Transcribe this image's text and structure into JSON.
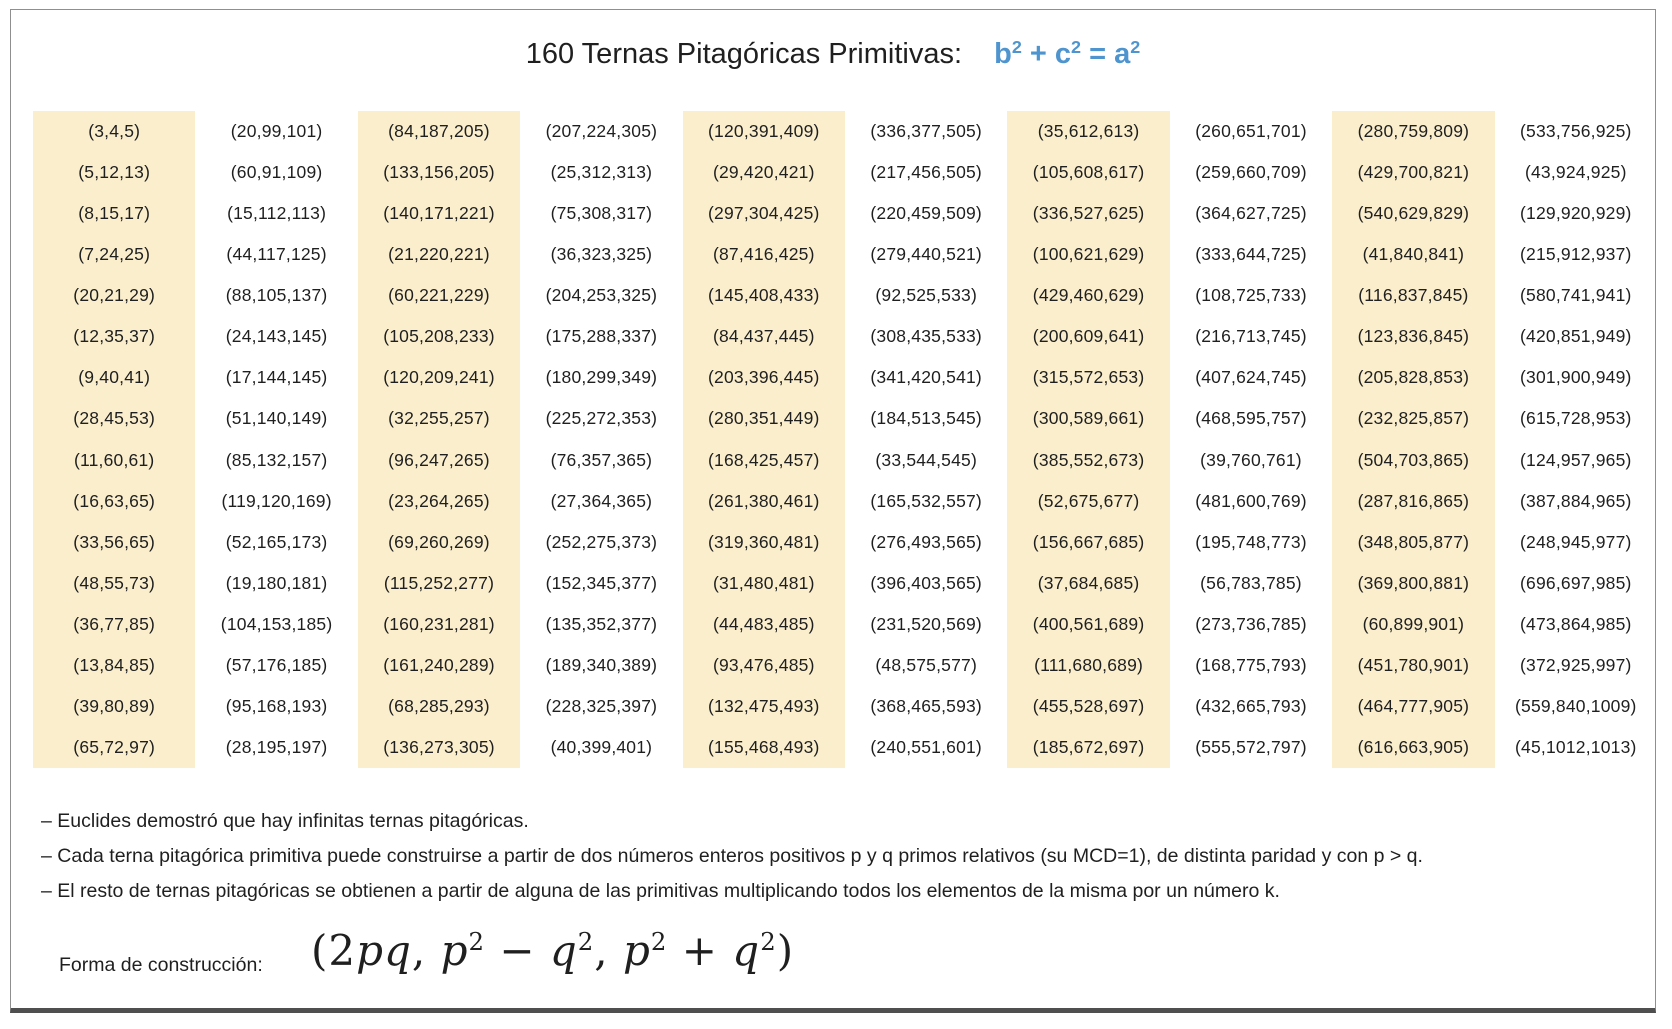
{
  "title": {
    "text": "160 Ternas Pitagóricas Primitivas:",
    "formula_parts": [
      {
        "v": "b",
        "i": false
      },
      {
        "v": "2",
        "sup": true
      },
      {
        "v": " + ",
        "i": false
      },
      {
        "v": "c",
        "i": false
      },
      {
        "v": "2",
        "sup": true
      },
      {
        "v": " = ",
        "i": false
      },
      {
        "v": "a",
        "i": false
      },
      {
        "v": "2",
        "sup": true
      }
    ]
  },
  "table": {
    "columns": [
      {
        "highlight": true,
        "triples": [
          "(3,4,5)",
          "(5,12,13)",
          "(8,15,17)",
          "(7,24,25)",
          "(20,21,29)",
          "(12,35,37)",
          "(9,40,41)",
          "(28,45,53)",
          "(11,60,61)",
          "(16,63,65)",
          "(33,56,65)",
          "(48,55,73)",
          "(36,77,85)",
          "(13,84,85)",
          "(39,80,89)",
          "(65,72,97)"
        ]
      },
      {
        "highlight": false,
        "triples": [
          "(20,99,101)",
          "(60,91,109)",
          "(15,112,113)",
          "(44,117,125)",
          "(88,105,137)",
          "(24,143,145)",
          "(17,144,145)",
          "(51,140,149)",
          "(85,132,157)",
          "(119,120,169)",
          "(52,165,173)",
          "(19,180,181)",
          "(104,153,185)",
          "(57,176,185)",
          "(95,168,193)",
          "(28,195,197)"
        ]
      },
      {
        "highlight": true,
        "triples": [
          "(84,187,205)",
          "(133,156,205)",
          "(140,171,221)",
          "(21,220,221)",
          "(60,221,229)",
          "(105,208,233)",
          "(120,209,241)",
          "(32,255,257)",
          "(96,247,265)",
          "(23,264,265)",
          "(69,260,269)",
          "(115,252,277)",
          "(160,231,281)",
          "(161,240,289)",
          "(68,285,293)",
          "(136,273,305)"
        ]
      },
      {
        "highlight": false,
        "triples": [
          "(207,224,305)",
          "(25,312,313)",
          "(75,308,317)",
          "(36,323,325)",
          "(204,253,325)",
          "(175,288,337)",
          "(180,299,349)",
          "(225,272,353)",
          "(76,357,365)",
          "(27,364,365)",
          "(252,275,373)",
          "(152,345,377)",
          "(135,352,377)",
          "(189,340,389)",
          "(228,325,397)",
          "(40,399,401)"
        ]
      },
      {
        "highlight": true,
        "triples": [
          "(120,391,409)",
          "(29,420,421)",
          "(297,304,425)",
          "(87,416,425)",
          "(145,408,433)",
          "(84,437,445)",
          "(203,396,445)",
          "(280,351,449)",
          "(168,425,457)",
          "(261,380,461)",
          "(319,360,481)",
          "(31,480,481)",
          "(44,483,485)",
          "(93,476,485)",
          "(132,475,493)",
          "(155,468,493)"
        ]
      },
      {
        "highlight": false,
        "triples": [
          "(336,377,505)",
          "(217,456,505)",
          "(220,459,509)",
          "(279,440,521)",
          "(92,525,533)",
          "(308,435,533)",
          "(341,420,541)",
          "(184,513,545)",
          "(33,544,545)",
          "(165,532,557)",
          "(276,493,565)",
          "(396,403,565)",
          "(231,520,569)",
          "(48,575,577)",
          "(368,465,593)",
          "(240,551,601)"
        ]
      },
      {
        "highlight": true,
        "triples": [
          "(35,612,613)",
          "(105,608,617)",
          "(336,527,625)",
          "(100,621,629)",
          "(429,460,629)",
          "(200,609,641)",
          "(315,572,653)",
          "(300,589,661)",
          "(385,552,673)",
          "(52,675,677)",
          "(156,667,685)",
          "(37,684,685)",
          "(400,561,689)",
          "(111,680,689)",
          "(455,528,697)",
          "(185,672,697)"
        ]
      },
      {
        "highlight": false,
        "triples": [
          "(260,651,701)",
          "(259,660,709)",
          "(364,627,725)",
          "(333,644,725)",
          "(108,725,733)",
          "(216,713,745)",
          "(407,624,745)",
          "(468,595,757)",
          "(39,760,761)",
          "(481,600,769)",
          "(195,748,773)",
          "(56,783,785)",
          "(273,736,785)",
          "(168,775,793)",
          "(432,665,793)",
          "(555,572,797)"
        ]
      },
      {
        "highlight": true,
        "triples": [
          "(280,759,809)",
          "(429,700,821)",
          "(540,629,829)",
          "(41,840,841)",
          "(116,837,845)",
          "(123,836,845)",
          "(205,828,853)",
          "(232,825,857)",
          "(504,703,865)",
          "(287,816,865)",
          "(348,805,877)",
          "(369,800,881)",
          "(60,899,901)",
          "(451,780,901)",
          "(464,777,905)",
          "(616,663,905)"
        ]
      },
      {
        "highlight": false,
        "triples": [
          "(533,756,925)",
          "(43,924,925)",
          "(129,920,929)",
          "(215,912,937)",
          "(580,741,941)",
          "(420,851,949)",
          "(301,900,949)",
          "(615,728,953)",
          "(124,957,965)",
          "(387,884,965)",
          "(248,945,977)",
          "(696,697,985)",
          "(473,864,985)",
          "(372,925,997)",
          "(559,840,1009)",
          "(45,1012,1013)"
        ]
      }
    ]
  },
  "notes": [
    "– Euclides demostró que hay infinitas ternas pitagóricas.",
    "– Cada terna pitagórica primitiva puede construirse a partir de dos números enteros positivos p y q primos relativos (su MCD=1), de distinta paridad y con p > q.",
    "– El resto de ternas pitagóricas se obtienen a partir de alguna de las primitivas multiplicando todos los elementos de la misma por un número k."
  ],
  "construction": {
    "label": "Forma de construcción:",
    "formula_parts": [
      {
        "v": "(",
        "i": false
      },
      {
        "v": "2",
        "i": false
      },
      {
        "v": "pq",
        "i": true
      },
      {
        "v": ", ",
        "i": false
      },
      {
        "v": "p",
        "i": true
      },
      {
        "v": "2",
        "sup": true
      },
      {
        "v": " − ",
        "i": false
      },
      {
        "v": "q",
        "i": true
      },
      {
        "v": "2",
        "sup": true
      },
      {
        "v": ", ",
        "i": false
      },
      {
        "v": "p",
        "i": true
      },
      {
        "v": "2",
        "sup": true
      },
      {
        "v": " + ",
        "i": false
      },
      {
        "v": "q",
        "i": true
      },
      {
        "v": "2",
        "sup": true
      },
      {
        "v": ")",
        "i": false
      }
    ]
  },
  "colors": {
    "accent_blue": "#4e94ce",
    "column_highlight": "#faeecd",
    "text": "#1f1f1f"
  }
}
